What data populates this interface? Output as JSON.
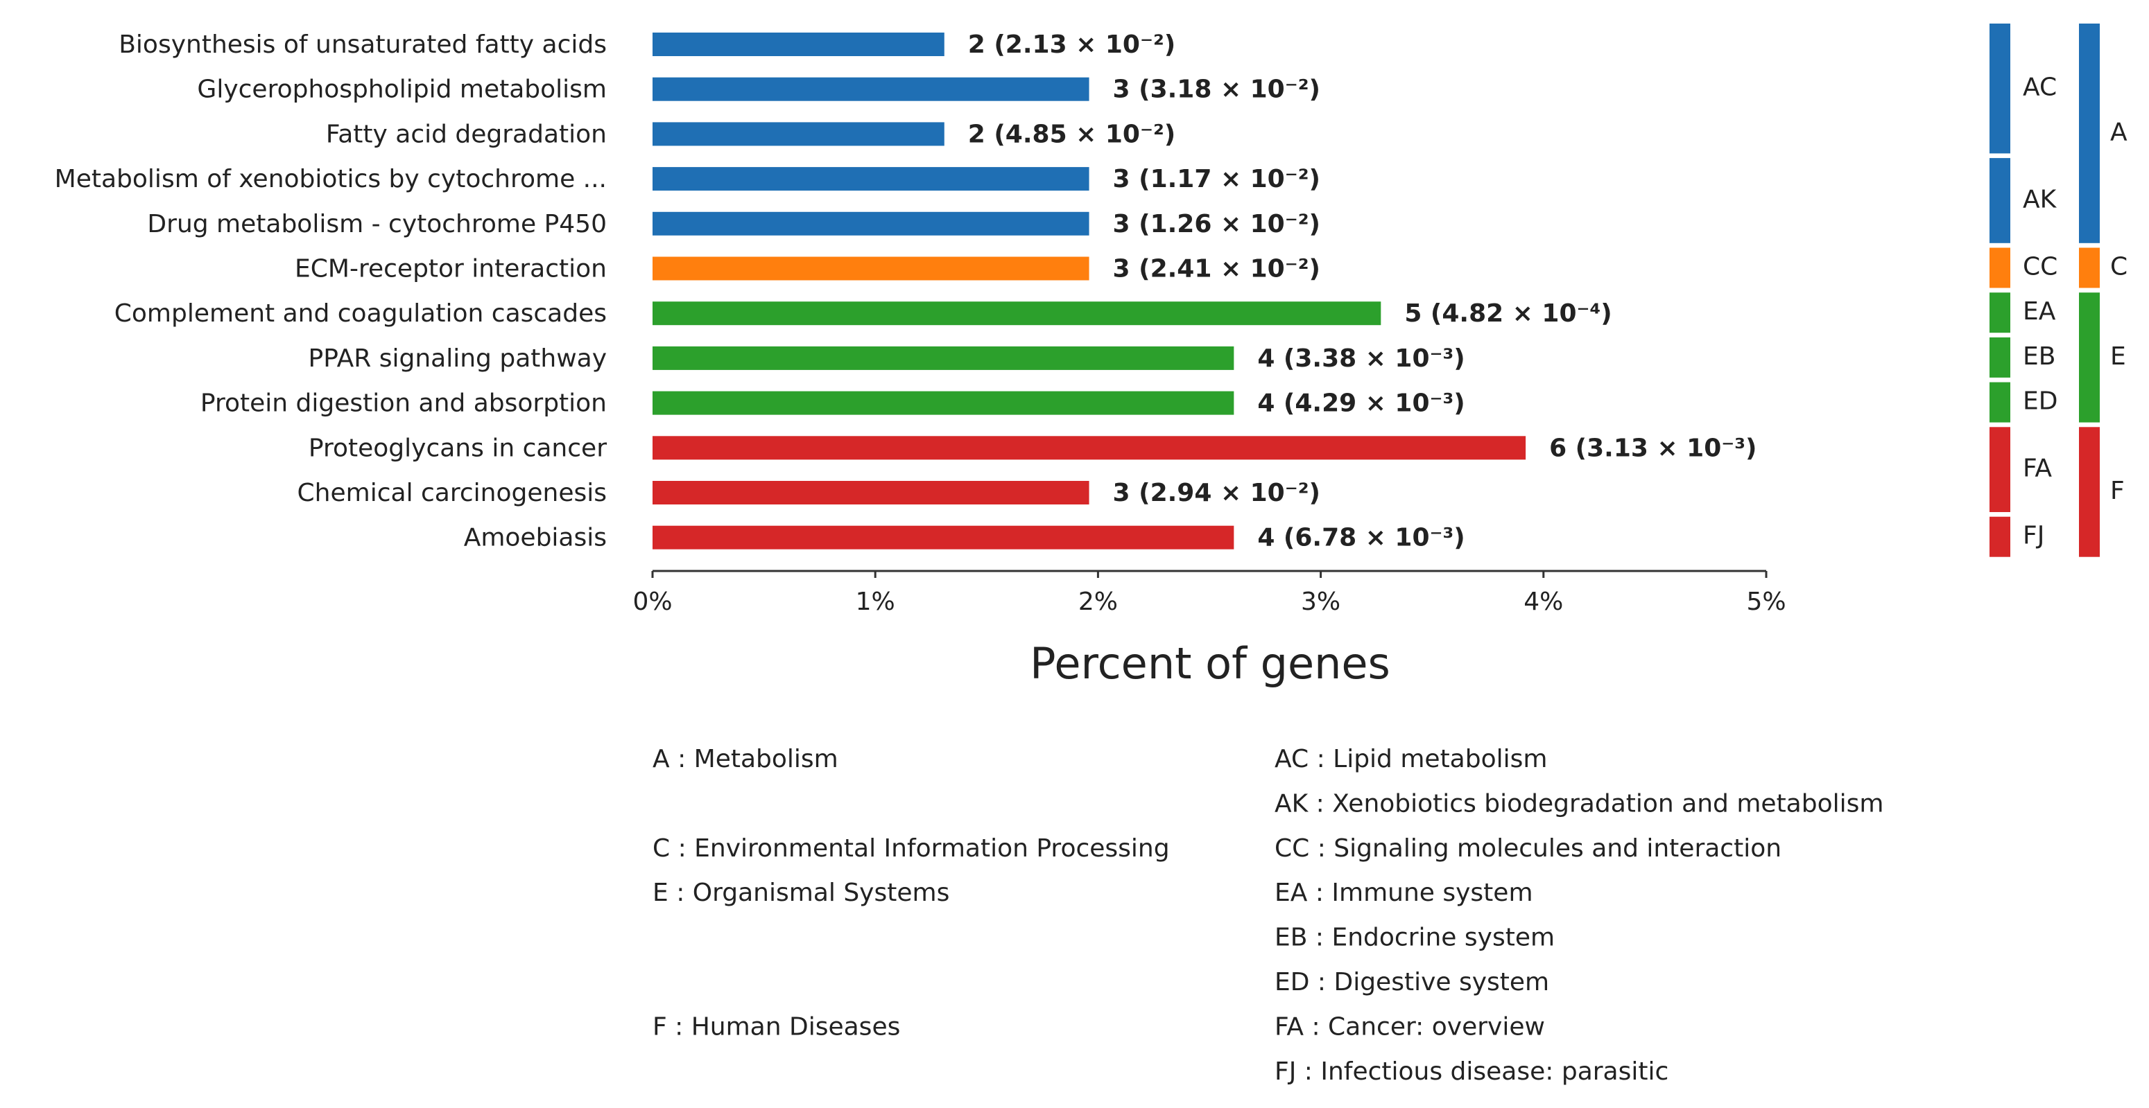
{
  "chart_data": {
    "type": "barh",
    "xlabel": "Percent of genes",
    "categories": [
      "Biosynthesis of unsaturated fatty acids",
      "Glycerophospholipid metabolism",
      "Fatty acid degradation",
      "Metabolism of xenobiotics by cytochrome ...",
      "Drug metabolism - cytochrome P450",
      "ECM-receptor interaction",
      "Complement and coagulation cascades",
      "PPAR signaling pathway",
      "Protein digestion and absorption",
      "Proteoglycans in cancer",
      "Chemical carcinogenesis",
      "Amoebiasis"
    ],
    "values": [
      1.31,
      1.96,
      1.31,
      1.96,
      1.96,
      1.96,
      3.27,
      2.61,
      2.61,
      3.92,
      1.96,
      2.61
    ],
    "bar_labels": [
      "2 (2.13 × 10⁻²)",
      "3 (3.18 × 10⁻²)",
      "2 (4.85 × 10⁻²)",
      "3 (1.17 × 10⁻²)",
      "3 (1.26 × 10⁻²)",
      "3 (2.41 × 10⁻²)",
      "5 (4.82 × 10⁻⁴)",
      "4 (3.38 × 10⁻³)",
      "4 (4.29 × 10⁻³)",
      "6 (3.13 × 10⁻³)",
      "3 (2.94 × 10⁻²)",
      "4 (6.78 × 10⁻³)"
    ],
    "class": [
      "A",
      "A",
      "A",
      "A",
      "A",
      "C",
      "E",
      "E",
      "E",
      "F",
      "F",
      "F"
    ],
    "subclass": [
      "AC",
      "AC",
      "AC",
      "AK",
      "AK",
      "CC",
      "EA",
      "EB",
      "ED",
      "FA",
      "FA",
      "FJ"
    ],
    "classes": [
      {
        "code": "A",
        "color": "#1f6fb4",
        "legend": "A : Metabolism"
      },
      {
        "code": "C",
        "color": "#ff7f0e",
        "legend": "C : Environmental Information Processing"
      },
      {
        "code": "E",
        "color": "#2ca02c",
        "legend": "E : Organismal Systems"
      },
      {
        "code": "F",
        "color": "#d62728",
        "legend": "F : Human Diseases"
      }
    ],
    "subclasses": [
      {
        "code": "AC",
        "legend": "AC : Lipid metabolism"
      },
      {
        "code": "AK",
        "legend": "AK : Xenobiotics biodegradation and metabolism"
      },
      {
        "code": "CC",
        "legend": "CC : Signaling molecules and interaction"
      },
      {
        "code": "EA",
        "legend": "EA : Immune system"
      },
      {
        "code": "EB",
        "legend": "EB : Endocrine system"
      },
      {
        "code": "ED",
        "legend": "ED : Digestive system"
      },
      {
        "code": "FA",
        "legend": "FA : Cancer: overview"
      },
      {
        "code": "FJ",
        "legend": "FJ : Infectious disease: parasitic"
      }
    ],
    "xlim": [
      0,
      5
    ],
    "xticks": [
      {
        "value": 0,
        "label": "0%"
      },
      {
        "value": 1,
        "label": "1%"
      },
      {
        "value": 2,
        "label": "2%"
      },
      {
        "value": 3,
        "label": "3%"
      },
      {
        "value": 4,
        "label": "4%"
      },
      {
        "value": 5,
        "label": "5%"
      }
    ]
  }
}
